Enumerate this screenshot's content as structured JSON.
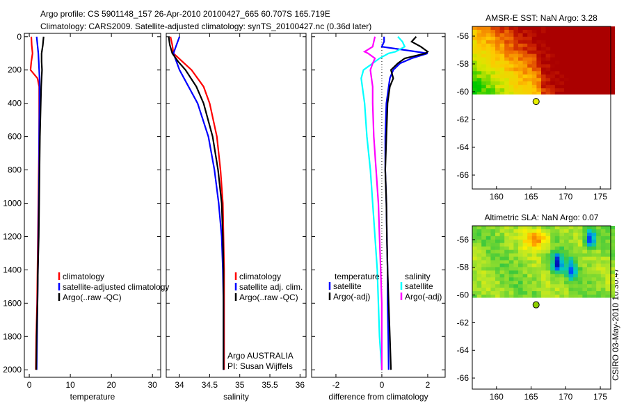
{
  "title": {
    "line1": "Argo profile: CS 5901148_157 26-Apr-2010 20100427_665 60.707S 165.719E",
    "line2": "Climatology: CARS2009. Satellite-adjusted climatology: synTS_20100427.nc (0.36d later)"
  },
  "side_stamp": "CSIRO 03-May-2010 10:30:47",
  "colors": {
    "red": "#ff0000",
    "blue": "#0000ff",
    "black": "#000000",
    "cyan": "#00ffff",
    "magenta": "#ff00ff"
  },
  "chart_data": [
    {
      "type": "line",
      "xlabel": "temperature",
      "ylabel": "",
      "xlim": [
        -1.2,
        32
      ],
      "ylim": [
        2045,
        -20
      ],
      "xticks": [
        "0",
        "10",
        "20",
        "30"
      ],
      "xtick_values": [
        0,
        10,
        20,
        30
      ],
      "yticks": [
        "0",
        "200",
        "400",
        "600",
        "800",
        "1000",
        "1200",
        "1400",
        "1600",
        "1800",
        "2000"
      ],
      "ytick_values": [
        0,
        200,
        400,
        600,
        800,
        1000,
        1200,
        1400,
        1600,
        1800,
        2000
      ],
      "depth": [
        0,
        50,
        100,
        150,
        200,
        250,
        300,
        400,
        600,
        800,
        1000,
        1200,
        1400,
        1600,
        1800,
        2000
      ],
      "series": [
        {
          "name": "climatology",
          "color": "#ff0000",
          "values": [
            0.5,
            0.6,
            0.8,
            0.5,
            0.3,
            2.0,
            2.4,
            2.4,
            2.4,
            2.3,
            2.2,
            2.1,
            2.0,
            1.9,
            1.7,
            1.6
          ]
        },
        {
          "name": "satellite-adjusted climatology",
          "color": "#0000ff",
          "values": [
            1.8,
            2.0,
            2.2,
            2.3,
            2.4,
            2.5,
            2.5,
            2.5,
            2.4,
            2.4,
            2.3,
            2.2,
            2.1,
            2.0,
            1.9,
            1.8
          ]
        },
        {
          "name": "Argo(..raw -QC)",
          "color": "#000000",
          "values": [
            3.5,
            3.3,
            3.0,
            3.0,
            3.1,
            3.0,
            2.9,
            2.8,
            2.6,
            2.5,
            2.4,
            2.3,
            2.1,
            2.0,
            1.8,
            1.7
          ]
        }
      ],
      "legend": [
        "climatology",
        "satellite-adjusted climatology",
        "Argo(..raw -QC)"
      ],
      "legend_placement": "lower-right"
    },
    {
      "type": "line",
      "xlabel": "salinity",
      "xlim": [
        33.78,
        36.1
      ],
      "ylim": [
        2045,
        -20
      ],
      "xticks": [
        "34",
        "34.5",
        "35",
        "35.5",
        "36"
      ],
      "xtick_values": [
        34,
        34.5,
        35,
        35.5,
        36
      ],
      "depth": [
        0,
        50,
        100,
        150,
        200,
        300,
        400,
        600,
        800,
        1000,
        1200,
        1400,
        1600,
        1800,
        2000
      ],
      "series": [
        {
          "name": "climatology",
          "color": "#ff0000",
          "values": [
            33.85,
            33.88,
            33.9,
            34.05,
            34.2,
            34.4,
            34.5,
            34.62,
            34.68,
            34.72,
            34.73,
            34.74,
            34.74,
            34.74,
            34.74
          ]
        },
        {
          "name": "satellite adj. clim.",
          "color": "#0000ff",
          "values": [
            34.0,
            33.95,
            33.9,
            33.95,
            34.0,
            34.15,
            34.3,
            34.48,
            34.58,
            34.65,
            34.7,
            34.72,
            34.73,
            34.73,
            34.73
          ]
        },
        {
          "name": "Argo(..raw -QC)",
          "color": "#000000",
          "values": [
            33.82,
            33.84,
            33.88,
            33.98,
            34.1,
            34.28,
            34.4,
            34.55,
            34.64,
            34.7,
            34.72,
            34.73,
            34.73,
            34.73,
            34.73
          ]
        }
      ],
      "legend": [
        "climatology",
        "satellite adj. clim.",
        "Argo(..raw -QC)"
      ],
      "annotation": [
        "Argo AUSTRALIA",
        "PI: Susan Wijffels"
      ]
    },
    {
      "type": "line",
      "xlabel": "difference from climatology",
      "xlim": [
        -3.06,
        2.76
      ],
      "ylim": [
        2045,
        -20
      ],
      "xticks": [
        "-2",
        "0",
        "2"
      ],
      "xtick_values": [
        -2,
        0,
        2
      ],
      "zero_line": "dotted",
      "depth": [
        0,
        30,
        60,
        90,
        100,
        130,
        160,
        200,
        250,
        300,
        400,
        600,
        800,
        1000,
        1200,
        1400,
        1600,
        1800,
        2000
      ],
      "series": [
        {
          "name": "temperature satellite",
          "color": "#0000ff",
          "values": [
            0.1,
            0.1,
            0.0,
            1.5,
            2.0,
            1.3,
            0.8,
            0.5,
            0.35,
            0.3,
            0.2,
            0.15,
            0.15,
            0.2,
            0.22,
            0.25,
            0.25,
            0.28,
            0.3
          ]
        },
        {
          "name": "temperature Argo(-adj)",
          "color": "#000000",
          "values": [
            1.5,
            1.3,
            1.7,
            2.0,
            1.9,
            1.0,
            0.7,
            0.4,
            0.5,
            0.35,
            0.25,
            0.2,
            0.15,
            0.2,
            0.22,
            0.25,
            0.3,
            0.35,
            0.4
          ]
        },
        {
          "name": "salinity satellite",
          "color": "#00ffff",
          "values": [
            0.7,
            0.9,
            1.0,
            0.6,
            0.3,
            -0.1,
            -0.4,
            -0.8,
            -0.9,
            -0.85,
            -0.75,
            -0.65,
            -0.5,
            -0.4,
            -0.3,
            -0.2,
            -0.15,
            -0.1,
            0.0
          ]
        },
        {
          "name": "salinity Argo(-adj)",
          "color": "#ff00ff",
          "values": [
            -0.3,
            -0.35,
            -0.4,
            -0.75,
            -0.6,
            -0.3,
            -0.4,
            -0.5,
            -0.45,
            -0.4,
            -0.4,
            -0.35,
            -0.25,
            -0.15,
            -0.1,
            -0.05,
            0.0,
            0.0,
            0.0
          ]
        }
      ],
      "legend_temperature": {
        "heading": "temperature",
        "items": [
          "satellite",
          "Argo(-adj)"
        ]
      },
      "legend_salinity": {
        "heading": "salinity",
        "items": [
          "satellite",
          "Argo(-adj)"
        ]
      }
    },
    {
      "type": "heatmap",
      "title": "AMSR-E SST: NaN Argo: 3.28",
      "xlim": [
        156.5,
        176.5
      ],
      "ylim": [
        -67,
        -55.3
      ],
      "xticks": [
        "160",
        "165",
        "170",
        "175"
      ],
      "xtick_values": [
        160,
        165,
        170,
        175
      ],
      "yticks": [
        "-56",
        "-58",
        "-60",
        "-62",
        "-64",
        "-66"
      ],
      "ytick_values": [
        -56,
        -58,
        -60,
        -62,
        -64,
        -66
      ],
      "data_extent_lat": [
        -60.2,
        -55.3
      ],
      "argo_position": {
        "lon": 165.719,
        "lat": -60.707
      }
    },
    {
      "type": "heatmap",
      "title": "Altimetric SLA: NaN Argo: 0.07",
      "xlim": [
        156.5,
        176.5
      ],
      "ylim": [
        -66.8,
        -55
      ],
      "xticks": [
        "160",
        "165",
        "170",
        "175"
      ],
      "xtick_values": [
        160,
        165,
        170,
        175
      ],
      "yticks": [
        "-56",
        "-58",
        "-60",
        "-62",
        "-64",
        "-66"
      ],
      "ytick_values": [
        -56,
        -58,
        -60,
        -62,
        -64,
        -66
      ],
      "data_extent_lat": [
        -60.2,
        -55
      ],
      "argo_position": {
        "lon": 165.719,
        "lat": -60.707
      }
    }
  ]
}
